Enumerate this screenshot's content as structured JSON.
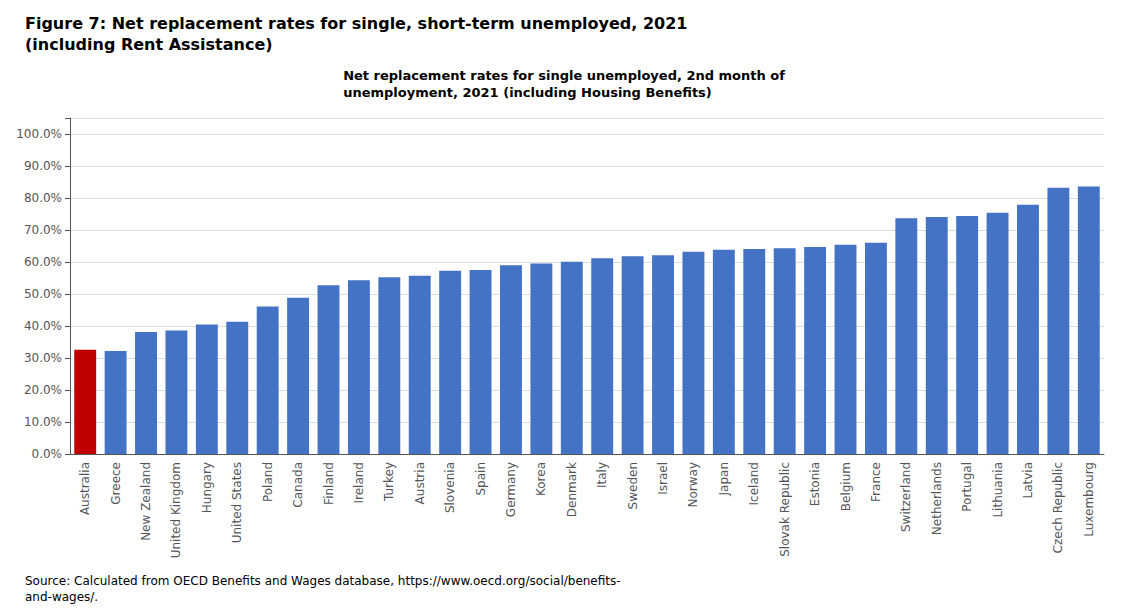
{
  "chart_data": {
    "type": "bar",
    "title": "Figure 7: Net replacement rates for single, short-term unemployed, 2021\n(including Rent Assistance)",
    "subtitle": "Net replacement rates for single unemployed, 2nd month of\nunemployment, 2021 (including Housing Benefits)",
    "annotations": [
      "Source: Calculated from OECD Benefits and Wages database, https://www.oecd.org/social/benefits-\nand-wages/."
    ],
    "categories": [
      "Australia",
      "Greece",
      "New Zealand",
      "United Kingdom",
      "Hungary",
      "United States",
      "Poland",
      "Canada",
      "Finland",
      "Ireland",
      "Turkey",
      "Austria",
      "Slovenia",
      "Spain",
      "Germany",
      "Korea",
      "Denmark",
      "Italy",
      "Sweden",
      "Israel",
      "Norway",
      "Japan",
      "Iceland",
      "Slovak Republic",
      "Estonia",
      "Belgium",
      "France",
      "Switzerland",
      "Netherlands",
      "Portugal",
      "Lithuania",
      "Latvia",
      "Czech Republic",
      "Luxembourg"
    ],
    "values": [
      0.326,
      0.322,
      0.381,
      0.386,
      0.405,
      0.413,
      0.461,
      0.488,
      0.527,
      0.543,
      0.552,
      0.557,
      0.573,
      0.575,
      0.59,
      0.595,
      0.601,
      0.612,
      0.618,
      0.621,
      0.632,
      0.638,
      0.641,
      0.643,
      0.647,
      0.654,
      0.66,
      0.737,
      0.741,
      0.744,
      0.754,
      0.779,
      0.832,
      0.836
    ],
    "colors": [
      "#c00000",
      "#4472c4",
      "#4472c4",
      "#4472c4",
      "#4472c4",
      "#4472c4",
      "#4472c4",
      "#4472c4",
      "#4472c4",
      "#4472c4",
      "#4472c4",
      "#4472c4",
      "#4472c4",
      "#4472c4",
      "#4472c4",
      "#4472c4",
      "#4472c4",
      "#4472c4",
      "#4472c4",
      "#4472c4",
      "#4472c4",
      "#4472c4",
      "#4472c4",
      "#4472c4",
      "#4472c4",
      "#4472c4",
      "#4472c4",
      "#4472c4",
      "#4472c4",
      "#4472c4",
      "#4472c4",
      "#4472c4",
      "#4472c4",
      "#4472c4"
    ],
    "ylim": [
      0.0,
      1.05
    ],
    "yticks": [
      {
        "value": 0.0,
        "label": "0.0%"
      },
      {
        "value": 0.1,
        "label": "10.0%"
      },
      {
        "value": 0.2,
        "label": "20.0%"
      },
      {
        "value": 0.3,
        "label": "30.0%"
      },
      {
        "value": 0.4,
        "label": "40.0%"
      },
      {
        "value": 0.5,
        "label": "50.0%"
      },
      {
        "value": 0.6,
        "label": "60.0%"
      },
      {
        "value": 0.7,
        "label": "70.0%"
      },
      {
        "value": 0.8,
        "label": "80.0%"
      },
      {
        "value": 0.9,
        "label": "90.0%"
      },
      {
        "value": 1.0,
        "label": "100.0%"
      }
    ],
    "grid": true
  }
}
